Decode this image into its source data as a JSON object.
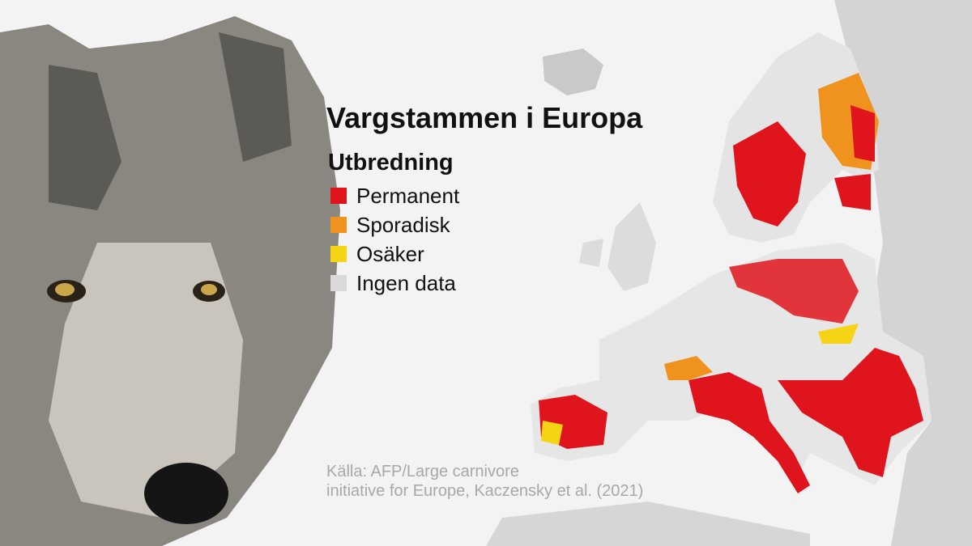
{
  "title": "Vargstammen i Europa",
  "subtitle": "Utbredning",
  "legend": [
    {
      "label": "Permanent",
      "color": "#e0141c"
    },
    {
      "label": "Sporadisk",
      "color": "#f0931e"
    },
    {
      "label": "Osäker",
      "color": "#f5d416"
    },
    {
      "label": "Ingen data",
      "color": "#d9d9d9"
    }
  ],
  "source": [
    "Källa: AFP/Large carnivore",
    "initiative for Europe, Kaczensky et al. (2021)"
  ]
}
